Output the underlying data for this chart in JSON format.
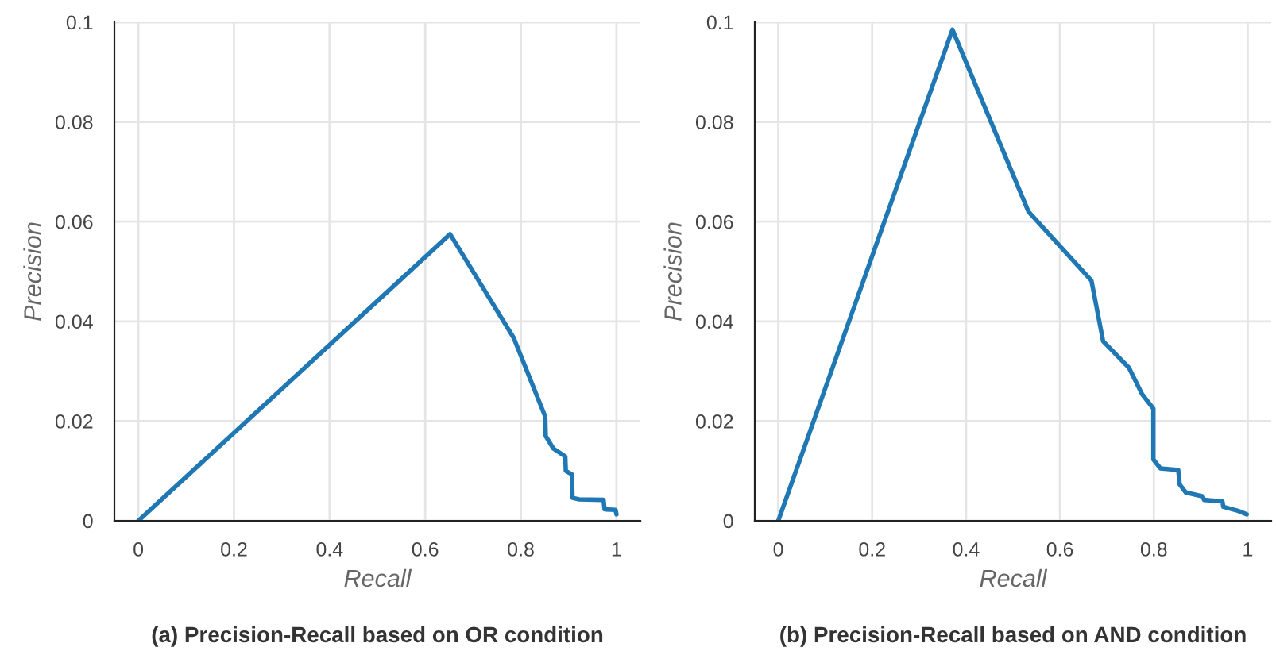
{
  "chart_data": [
    {
      "type": "line",
      "title": "(a) Precision-Recall based on OR condition",
      "xlabel": "Recall",
      "ylabel": "Precision",
      "xlim": [
        -0.05,
        1.05
      ],
      "ylim": [
        0,
        0.1
      ],
      "xticks": [
        0,
        0.2,
        0.4,
        0.6,
        0.8,
        1
      ],
      "yticks": [
        0,
        0.02,
        0.04,
        0.06,
        0.08,
        0.1
      ],
      "grid": true,
      "legend": false,
      "series": [
        {
          "color": "#1f77b4",
          "x": [
            0,
            0.652,
            0.785,
            0.851,
            0.852,
            0.868,
            0.893,
            0.894,
            0.907,
            0.908,
            0.922,
            0.973,
            0.975,
            0.998,
            1.0
          ],
          "values": [
            0,
            0.0575,
            0.0367,
            0.0209,
            0.017,
            0.0145,
            0.0129,
            0.01,
            0.0093,
            0.0046,
            0.0043,
            0.0042,
            0.0023,
            0.0022,
            0.0013
          ]
        }
      ]
    },
    {
      "type": "line",
      "title": "(b) Precision-Recall based on AND condition",
      "xlabel": "Recall",
      "ylabel": "Precision",
      "xlim": [
        -0.05,
        1.05
      ],
      "ylim": [
        0,
        0.1
      ],
      "xticks": [
        0,
        0.2,
        0.4,
        0.6,
        0.8,
        1
      ],
      "yticks": [
        0,
        0.02,
        0.04,
        0.06,
        0.08,
        0.1
      ],
      "grid": true,
      "legend": false,
      "series": [
        {
          "color": "#1f77b4",
          "x": [
            0,
            0.371,
            0.533,
            0.667,
            0.692,
            0.747,
            0.775,
            0.799,
            0.799,
            0.814,
            0.852,
            0.855,
            0.868,
            0.904,
            0.907,
            0.946,
            0.948,
            0.979,
            0.998
          ],
          "values": [
            0,
            0.0985,
            0.062,
            0.0482,
            0.036,
            0.0307,
            0.0254,
            0.0225,
            0.0123,
            0.0105,
            0.0102,
            0.0073,
            0.0057,
            0.0049,
            0.0042,
            0.0039,
            0.0028,
            0.002,
            0.0013
          ]
        }
      ]
    }
  ]
}
